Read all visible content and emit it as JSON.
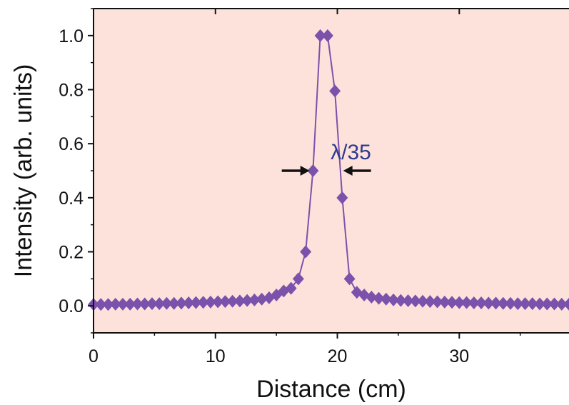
{
  "chart_data": {
    "type": "scatter",
    "xlabel": "Distance (cm)",
    "ylabel": "Intensity (arb. units)",
    "xlim": [
      0,
      39
    ],
    "ylim": [
      -0.1,
      1.1
    ],
    "xticks": [
      0,
      10,
      20,
      30
    ],
    "yticks": [
      0.0,
      0.2,
      0.4,
      0.6,
      0.8,
      1.0
    ],
    "xtick_labels": [
      "0",
      "10",
      "20",
      "30"
    ],
    "ytick_labels": [
      "0.0",
      "0.2",
      "0.4",
      "0.6",
      "0.8",
      "1.0"
    ],
    "grid": false,
    "series": [
      {
        "marker": "diamond",
        "line": true,
        "x": [
          0,
          0.6,
          1.2,
          1.8,
          2.4,
          3.0,
          3.6,
          4.2,
          4.8,
          5.4,
          6.0,
          6.6,
          7.2,
          7.8,
          8.4,
          9.0,
          9.6,
          10.2,
          10.8,
          11.4,
          12.0,
          12.6,
          13.2,
          13.8,
          14.4,
          15.0,
          15.6,
          16.2,
          16.8,
          17.4,
          18.0,
          18.6,
          19.2,
          19.8,
          20.4,
          21.0,
          21.6,
          22.2,
          22.8,
          23.4,
          24.0,
          24.6,
          25.2,
          25.8,
          26.4,
          27.0,
          27.6,
          28.2,
          28.8,
          29.4,
          30.0,
          30.6,
          31.2,
          31.8,
          32.4,
          33.0,
          33.6,
          34.2,
          34.8,
          35.4,
          36.0,
          36.6,
          37.2,
          37.8,
          38.4,
          39.0
        ],
        "y": [
          0.005,
          0.005,
          0.005,
          0.006,
          0.006,
          0.006,
          0.007,
          0.007,
          0.008,
          0.008,
          0.009,
          0.009,
          0.01,
          0.011,
          0.012,
          0.013,
          0.014,
          0.015,
          0.016,
          0.017,
          0.018,
          0.02,
          0.022,
          0.025,
          0.03,
          0.04,
          0.055,
          0.065,
          0.1,
          0.2,
          0.5,
          1.0,
          1.0,
          0.795,
          0.4,
          0.1,
          0.05,
          0.04,
          0.032,
          0.028,
          0.025,
          0.022,
          0.02,
          0.019,
          0.018,
          0.017,
          0.016,
          0.015,
          0.014,
          0.013,
          0.012,
          0.012,
          0.011,
          0.011,
          0.01,
          0.01,
          0.009,
          0.009,
          0.008,
          0.008,
          0.008,
          0.007,
          0.007,
          0.007,
          0.006,
          0.006
        ]
      }
    ],
    "annotations": [
      {
        "text": "λ/35",
        "x": 21.5,
        "y": 0.6
      }
    ]
  },
  "colors": {
    "plot_background": "#fde2dc",
    "series": "#7b52ab",
    "annotation_text": "#2e3a8c",
    "arrows": "#111111",
    "axes": "#111111"
  }
}
